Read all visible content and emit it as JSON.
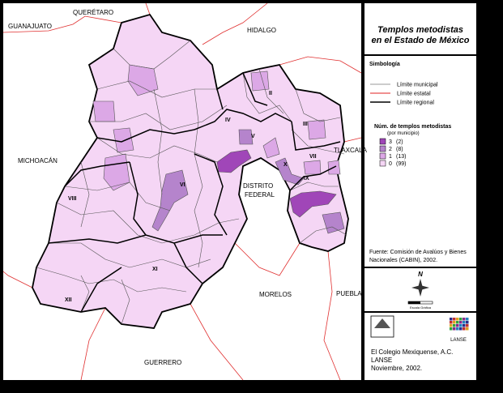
{
  "map": {
    "states": [
      "QUERÉTARO",
      "GUANAJUATO",
      "HIDALGO",
      "MICHOACÁN",
      "TLAXCALA",
      "DISTRITO",
      "FEDERAL",
      "MORELOS",
      "PUEBLA",
      "GUERRERO"
    ],
    "regions": [
      "II",
      "III",
      "IV",
      "V",
      "VI",
      "VII",
      "VIII",
      "IX",
      "X",
      "XI",
      "XII"
    ]
  },
  "panel": {
    "title": [
      "Templos metodistas",
      "en el Estado de México"
    ],
    "symbology_title": "Simbología",
    "lines": [
      {
        "label": "Límite municipal",
        "color": "#999999"
      },
      {
        "label": "Límite estatal",
        "color": "#e02020"
      },
      {
        "label": "Límite regional",
        "color": "#000000"
      }
    ],
    "classes_title": "Núm. de templos metodistas",
    "classes_subtitle": "(por municipio)",
    "classes": [
      {
        "value": "3",
        "count": "(2)",
        "color": "#a046b8"
      },
      {
        "value": "2",
        "count": "(8)",
        "color": "#b584cc"
      },
      {
        "value": "1",
        "count": "(13)",
        "color": "#dca8e6"
      },
      {
        "value": "0",
        "count": "(99)",
        "color": "#f5d6f5"
      }
    ],
    "source": [
      "Fuente: Comisión de Avalúos y Bienes",
      "Nacionales (CABIN), 2002."
    ],
    "north": "N",
    "scale": "Escala Gráfica",
    "logo_label": "LANSE",
    "credits": [
      "El Colegio Mexiquense, A.C.",
      "LANSE",
      "Noviembre, 2002."
    ]
  }
}
